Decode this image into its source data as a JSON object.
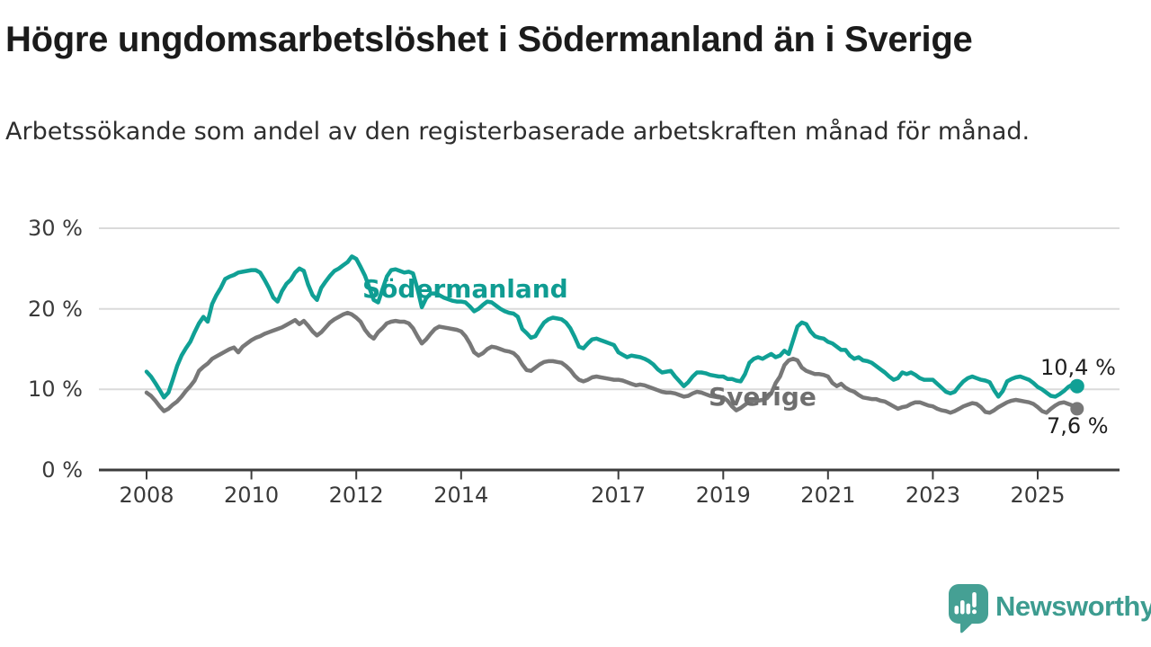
{
  "header": {
    "title": "Högre ungdomsarbetslöshet i Södermanland än i Sverige",
    "subtitle": "Arbetssökande som andel av den registerbaserade arbetskraften månad för månad."
  },
  "footer": {
    "brand": "Newsworthy",
    "brand_text_color": "#3d9c90",
    "brand_icon_color": "#45a094"
  },
  "chart_data": {
    "type": "line",
    "title": "Högre ungdomsarbetslöshet i Södermanland än i Sverige",
    "unit": "%",
    "frequency": "monthly",
    "x_start": "2008-01",
    "x_end": "2025-10",
    "ylim": [
      0,
      30
    ],
    "grid": "horizontal",
    "legend_position": "inline-labels",
    "yticks": [
      {
        "value": 30,
        "label": "30 %"
      },
      {
        "value": 20,
        "label": "20 %"
      },
      {
        "value": 10,
        "label": "10 %"
      },
      {
        "value": 0,
        "label": "0 %"
      }
    ],
    "xticks": [
      {
        "year": 2008,
        "label": "2008"
      },
      {
        "year": 2010,
        "label": "2010"
      },
      {
        "year": 2012,
        "label": "2012"
      },
      {
        "year": 2014,
        "label": "2014"
      },
      {
        "year": 2017,
        "label": "2017"
      },
      {
        "year": 2019,
        "label": "2019"
      },
      {
        "year": 2021,
        "label": "2021"
      },
      {
        "year": 2023,
        "label": "2023"
      },
      {
        "year": 2025,
        "label": "2025"
      }
    ],
    "series": [
      {
        "name": "Södermanland",
        "color": "#10a095",
        "label_color": "#0f9c92",
        "end_value": 10.4,
        "end_label": "10,4 %",
        "values": [
          12.2,
          11.6,
          10.8,
          9.9,
          9.0,
          9.6,
          11.2,
          12.9,
          14.2,
          15.1,
          15.9,
          17.1,
          18.2,
          19.0,
          18.4,
          20.6,
          21.7,
          22.6,
          23.7,
          24.0,
          24.2,
          24.5,
          24.6,
          24.7,
          24.8,
          24.8,
          24.5,
          23.6,
          22.6,
          21.4,
          20.9,
          22.2,
          23.1,
          23.6,
          24.5,
          25.0,
          24.7,
          23.0,
          21.7,
          21.1,
          22.6,
          23.4,
          24.1,
          24.7,
          25.0,
          25.4,
          25.8,
          26.5,
          26.2,
          25.2,
          24.1,
          22.6,
          21.1,
          20.8,
          22.4,
          24.0,
          24.8,
          24.9,
          24.7,
          24.5,
          24.6,
          24.4,
          22.5,
          20.2,
          21.3,
          21.9,
          21.9,
          21.7,
          21.4,
          21.2,
          21.0,
          20.9,
          20.9,
          20.8,
          20.3,
          19.7,
          20.0,
          20.5,
          20.9,
          20.8,
          20.4,
          20.0,
          19.7,
          19.5,
          19.4,
          19.0,
          17.5,
          17.0,
          16.4,
          16.6,
          17.5,
          18.3,
          18.7,
          18.9,
          18.8,
          18.7,
          18.3,
          17.6,
          16.5,
          15.3,
          15.1,
          15.7,
          16.2,
          16.3,
          16.1,
          15.9,
          15.7,
          15.5,
          14.6,
          14.3,
          14.0,
          14.2,
          14.1,
          14.0,
          13.8,
          13.5,
          13.1,
          12.5,
          12.1,
          12.2,
          12.3,
          11.6,
          11.0,
          10.4,
          10.9,
          11.6,
          12.1,
          12.1,
          12.0,
          11.8,
          11.7,
          11.6,
          11.6,
          11.3,
          11.3,
          11.1,
          11.0,
          11.9,
          13.3,
          13.8,
          14.0,
          13.8,
          14.1,
          14.4,
          14.0,
          14.2,
          14.8,
          14.4,
          16.1,
          17.8,
          18.3,
          18.1,
          17.2,
          16.6,
          16.4,
          16.3,
          15.9,
          15.7,
          15.3,
          14.9,
          14.9,
          14.2,
          13.8,
          14.0,
          13.6,
          13.5,
          13.3,
          12.9,
          12.5,
          12.1,
          11.6,
          11.2,
          11.4,
          12.1,
          11.9,
          12.1,
          11.8,
          11.4,
          11.2,
          11.2,
          11.2,
          10.7,
          10.2,
          9.7,
          9.5,
          9.7,
          10.4,
          11.0,
          11.4,
          11.6,
          11.4,
          11.2,
          11.1,
          10.9,
          9.9,
          9.1,
          9.8,
          11.0,
          11.3,
          11.5,
          11.6,
          11.4,
          11.2,
          10.8,
          10.3,
          10.0,
          9.6,
          9.2,
          9.1,
          9.4,
          9.8,
          10.3,
          10.6,
          10.4
        ]
      },
      {
        "name": "Sverige",
        "color": "#787878",
        "label_color": "#6f6f6f",
        "end_value": 7.6,
        "end_label": "7,6 %",
        "values": [
          9.6,
          9.2,
          8.6,
          7.9,
          7.3,
          7.6,
          8.1,
          8.5,
          9.1,
          9.8,
          10.4,
          11.1,
          12.3,
          12.8,
          13.2,
          13.8,
          14.1,
          14.4,
          14.7,
          15.0,
          15.2,
          14.6,
          15.3,
          15.7,
          16.1,
          16.4,
          16.6,
          16.9,
          17.1,
          17.3,
          17.5,
          17.7,
          18.0,
          18.3,
          18.6,
          18.1,
          18.5,
          17.9,
          17.2,
          16.7,
          17.1,
          17.7,
          18.3,
          18.7,
          19.0,
          19.3,
          19.5,
          19.3,
          18.9,
          18.4,
          17.4,
          16.7,
          16.3,
          17.1,
          17.6,
          18.2,
          18.4,
          18.5,
          18.4,
          18.4,
          18.2,
          17.6,
          16.6,
          15.7,
          16.2,
          16.9,
          17.5,
          17.8,
          17.7,
          17.6,
          17.5,
          17.4,
          17.2,
          16.6,
          15.7,
          14.6,
          14.2,
          14.5,
          15.0,
          15.3,
          15.2,
          15.0,
          14.8,
          14.7,
          14.5,
          14.0,
          13.1,
          12.4,
          12.3,
          12.7,
          13.1,
          13.4,
          13.5,
          13.5,
          13.4,
          13.3,
          12.9,
          12.4,
          11.7,
          11.2,
          11.0,
          11.2,
          11.5,
          11.6,
          11.5,
          11.4,
          11.3,
          11.2,
          11.2,
          11.1,
          10.9,
          10.7,
          10.5,
          10.6,
          10.5,
          10.3,
          10.1,
          9.9,
          9.7,
          9.6,
          9.6,
          9.5,
          9.3,
          9.1,
          9.2,
          9.5,
          9.7,
          9.6,
          9.4,
          9.2,
          9.1,
          9.0,
          9.0,
          8.6,
          7.9,
          7.4,
          7.7,
          8.1,
          8.5,
          8.6,
          8.6,
          8.7,
          8.9,
          9.5,
          10.8,
          11.6,
          13.0,
          13.6,
          13.8,
          13.6,
          12.7,
          12.3,
          12.1,
          11.9,
          11.9,
          11.8,
          11.6,
          10.8,
          10.4,
          10.7,
          10.2,
          9.9,
          9.7,
          9.3,
          9.0,
          8.9,
          8.8,
          8.8,
          8.6,
          8.5,
          8.2,
          7.9,
          7.6,
          7.8,
          7.9,
          8.2,
          8.4,
          8.4,
          8.2,
          8.0,
          7.9,
          7.6,
          7.4,
          7.3,
          7.1,
          7.3,
          7.6,
          7.9,
          8.1,
          8.3,
          8.2,
          7.8,
          7.2,
          7.1,
          7.4,
          7.8,
          8.1,
          8.4,
          8.6,
          8.7,
          8.6,
          8.5,
          8.4,
          8.2,
          7.8,
          7.3,
          7.1,
          7.6,
          8.0,
          8.3,
          8.4,
          8.2,
          8.0,
          7.6
        ]
      }
    ]
  }
}
